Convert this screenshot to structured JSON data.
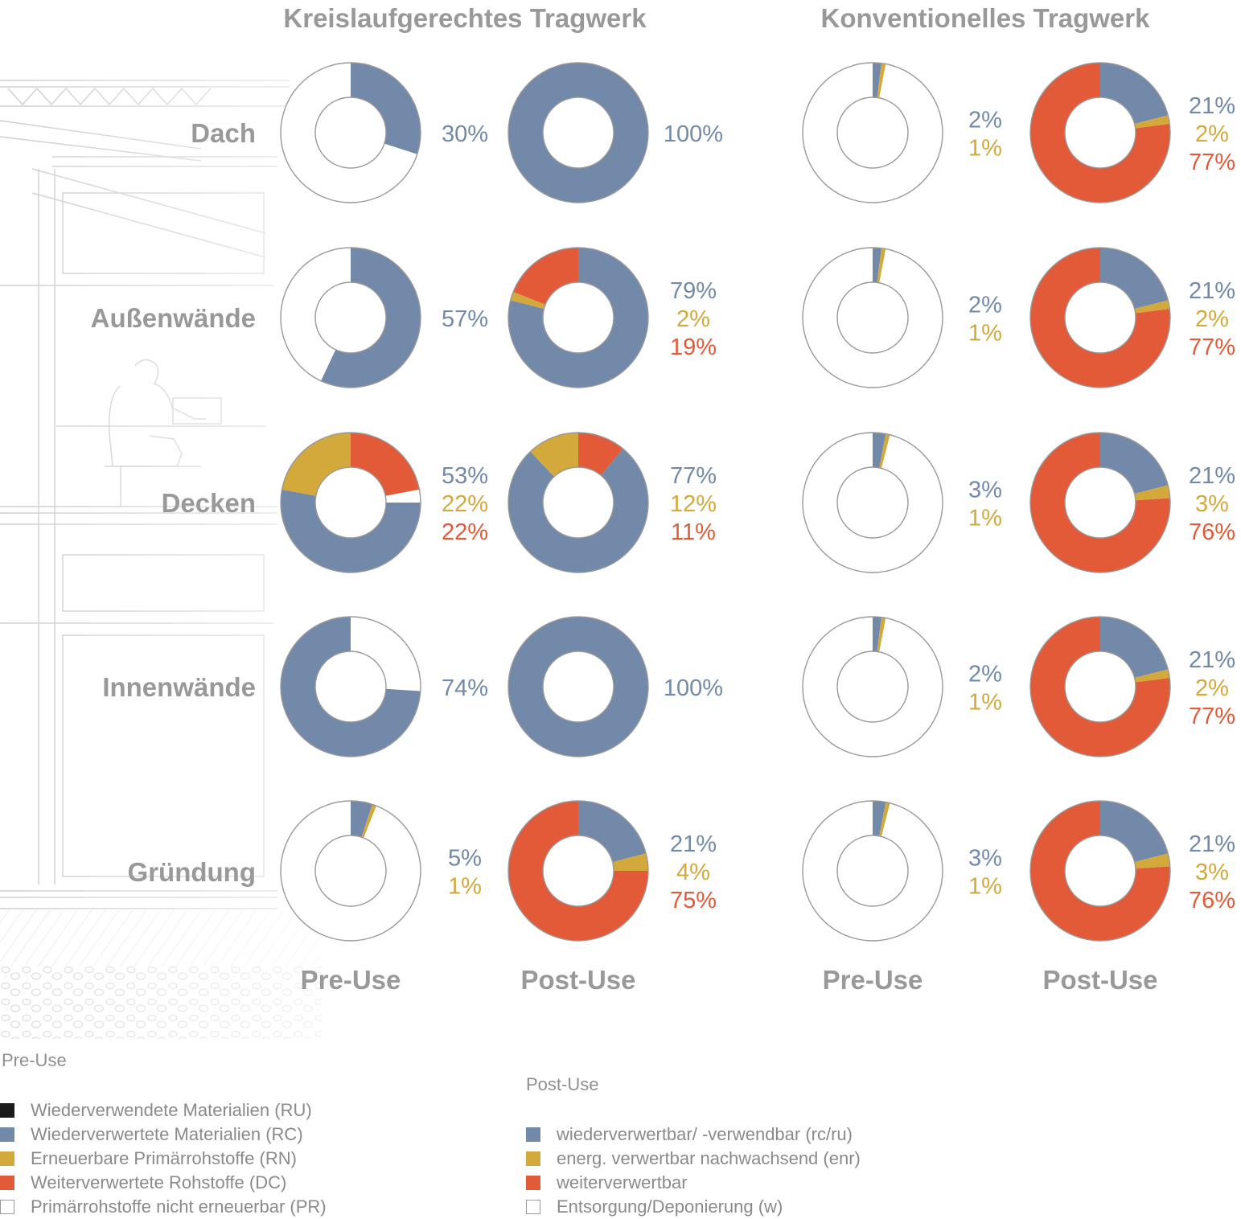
{
  "colors": {
    "rc": "#7289a9",
    "rn": "#d3a93b",
    "dc": "#e25a38",
    "ru": "#1a1a1a",
    "pr": "#ffffff",
    "text_grey": "#999999",
    "ring_stroke": "#999999"
  },
  "headers": {
    "left": "Kreislaufgerechtes Tragwerk",
    "right": "Konventionelles Tragwerk"
  },
  "row_labels": [
    "Dach",
    "Außenwände",
    "Decken",
    "Innenwände",
    "Gründung"
  ],
  "column_labels": [
    "Pre-Use",
    "Post-Use",
    "Pre-Use",
    "Post-Use"
  ],
  "chart_data": {
    "type": "pie",
    "variant": "donut-grid",
    "rows": [
      "Dach",
      "Außenwände",
      "Decken",
      "Innenwände",
      "Gründung"
    ],
    "columns": [
      {
        "group": "Kreislaufgerechtes Tragwerk",
        "phase": "Pre-Use"
      },
      {
        "group": "Kreislaufgerechtes Tragwerk",
        "phase": "Post-Use"
      },
      {
        "group": "Konventionelles Tragwerk",
        "phase": "Pre-Use"
      },
      {
        "group": "Konventionelles Tragwerk",
        "phase": "Post-Use"
      }
    ],
    "cells": [
      [
        {
          "slices": [
            {
              "key": "rc",
              "value": 30
            },
            {
              "key": "pr",
              "value": 70
            }
          ],
          "labels": [
            {
              "text": "30%",
              "key": "rc"
            }
          ]
        },
        {
          "slices": [
            {
              "key": "rc",
              "value": 100
            }
          ],
          "labels": [
            {
              "text": "100%",
              "key": "rc"
            }
          ]
        },
        {
          "slices": [
            {
              "key": "rc",
              "value": 2
            },
            {
              "key": "rn",
              "value": 1
            },
            {
              "key": "pr",
              "value": 97
            }
          ],
          "labels": [
            {
              "text": "2%",
              "key": "rc"
            },
            {
              "text": "1%",
              "key": "rn"
            }
          ]
        },
        {
          "slices": [
            {
              "key": "rc",
              "value": 21
            },
            {
              "key": "rn",
              "value": 2
            },
            {
              "key": "dc",
              "value": 77
            }
          ],
          "labels": [
            {
              "text": "21%",
              "key": "rc"
            },
            {
              "text": "2%",
              "key": "rn"
            },
            {
              "text": "77%",
              "key": "dc"
            }
          ]
        }
      ],
      [
        {
          "slices": [
            {
              "key": "rc",
              "value": 57
            },
            {
              "key": "pr",
              "value": 43
            }
          ],
          "labels": [
            {
              "text": "57%",
              "key": "rc"
            }
          ]
        },
        {
          "slices": [
            {
              "key": "rc",
              "value": 79
            },
            {
              "key": "rn",
              "value": 2
            },
            {
              "key": "dc",
              "value": 19
            }
          ],
          "labels": [
            {
              "text": "79%",
              "key": "rc"
            },
            {
              "text": "2%",
              "key": "rn"
            },
            {
              "text": "19%",
              "key": "dc"
            }
          ]
        },
        {
          "slices": [
            {
              "key": "rc",
              "value": 2
            },
            {
              "key": "rn",
              "value": 1
            },
            {
              "key": "pr",
              "value": 97
            }
          ],
          "labels": [
            {
              "text": "2%",
              "key": "rc"
            },
            {
              "text": "1%",
              "key": "rn"
            }
          ]
        },
        {
          "slices": [
            {
              "key": "rc",
              "value": 21
            },
            {
              "key": "rn",
              "value": 2
            },
            {
              "key": "dc",
              "value": 77
            }
          ],
          "labels": [
            {
              "text": "21%",
              "key": "rc"
            },
            {
              "text": "2%",
              "key": "rn"
            },
            {
              "text": "77%",
              "key": "dc"
            }
          ]
        }
      ],
      [
        {
          "slices": [
            {
              "key": "rc",
              "value": 53
            },
            {
              "key": "rn",
              "value": 22
            },
            {
              "key": "dc",
              "value": 22
            },
            {
              "key": "pr",
              "value": 3
            }
          ],
          "order": [
            "dc",
            "pr",
            "rc",
            "rn"
          ],
          "labels": [
            {
              "text": "53%",
              "key": "rc"
            },
            {
              "text": "22%",
              "key": "rn"
            },
            {
              "text": "22%",
              "key": "dc"
            }
          ]
        },
        {
          "slices": [
            {
              "key": "rc",
              "value": 77
            },
            {
              "key": "rn",
              "value": 12
            },
            {
              "key": "dc",
              "value": 11
            }
          ],
          "order": [
            "dc",
            "rc",
            "rn"
          ],
          "labels": [
            {
              "text": "77%",
              "key": "rc"
            },
            {
              "text": "12%",
              "key": "rn"
            },
            {
              "text": "11%",
              "key": "dc"
            }
          ]
        },
        {
          "slices": [
            {
              "key": "rc",
              "value": 3
            },
            {
              "key": "rn",
              "value": 1
            },
            {
              "key": "pr",
              "value": 96
            }
          ],
          "labels": [
            {
              "text": "3%",
              "key": "rc"
            },
            {
              "text": "1%",
              "key": "rn"
            }
          ]
        },
        {
          "slices": [
            {
              "key": "rc",
              "value": 21
            },
            {
              "key": "rn",
              "value": 3
            },
            {
              "key": "dc",
              "value": 76
            }
          ],
          "labels": [
            {
              "text": "21%",
              "key": "rc"
            },
            {
              "text": "3%",
              "key": "rn"
            },
            {
              "text": "76%",
              "key": "dc"
            }
          ]
        }
      ],
      [
        {
          "slices": [
            {
              "key": "rc",
              "value": 74
            },
            {
              "key": "pr",
              "value": 26
            }
          ],
          "order": [
            "pr",
            "rc"
          ],
          "labels": [
            {
              "text": "74%",
              "key": "rc"
            }
          ]
        },
        {
          "slices": [
            {
              "key": "rc",
              "value": 100
            }
          ],
          "labels": [
            {
              "text": "100%",
              "key": "rc"
            }
          ]
        },
        {
          "slices": [
            {
              "key": "rc",
              "value": 2
            },
            {
              "key": "rn",
              "value": 1
            },
            {
              "key": "pr",
              "value": 97
            }
          ],
          "labels": [
            {
              "text": "2%",
              "key": "rc"
            },
            {
              "text": "1%",
              "key": "rn"
            }
          ]
        },
        {
          "slices": [
            {
              "key": "rc",
              "value": 21
            },
            {
              "key": "rn",
              "value": 2
            },
            {
              "key": "dc",
              "value": 77
            }
          ],
          "labels": [
            {
              "text": "21%",
              "key": "rc"
            },
            {
              "text": "2%",
              "key": "rn"
            },
            {
              "text": "77%",
              "key": "dc"
            }
          ]
        }
      ],
      [
        {
          "slices": [
            {
              "key": "rc",
              "value": 5
            },
            {
              "key": "rn",
              "value": 1
            },
            {
              "key": "pr",
              "value": 94
            }
          ],
          "labels": [
            {
              "text": "5%",
              "key": "rc"
            },
            {
              "text": "1%",
              "key": "rn"
            }
          ]
        },
        {
          "slices": [
            {
              "key": "rc",
              "value": 21
            },
            {
              "key": "rn",
              "value": 4
            },
            {
              "key": "dc",
              "value": 75
            }
          ],
          "labels": [
            {
              "text": "21%",
              "key": "rc"
            },
            {
              "text": "4%",
              "key": "rn"
            },
            {
              "text": "75%",
              "key": "dc"
            }
          ]
        },
        {
          "slices": [
            {
              "key": "rc",
              "value": 3
            },
            {
              "key": "rn",
              "value": 1
            },
            {
              "key": "pr",
              "value": 96
            }
          ],
          "labels": [
            {
              "text": "3%",
              "key": "rc"
            },
            {
              "text": "1%",
              "key": "rn"
            }
          ]
        },
        {
          "slices": [
            {
              "key": "rc",
              "value": 21
            },
            {
              "key": "rn",
              "value": 3
            },
            {
              "key": "dc",
              "value": 76
            }
          ],
          "labels": [
            {
              "text": "21%",
              "key": "rc"
            },
            {
              "text": "3%",
              "key": "rn"
            },
            {
              "text": "76%",
              "key": "dc"
            }
          ]
        }
      ]
    ]
  },
  "legend": {
    "pre_use": {
      "title": "Pre-Use",
      "items": [
        {
          "label": "Wiederverwendete Materialien (RU)",
          "key": "ru"
        },
        {
          "label": "Wiederverwertete Materialien (RC)",
          "key": "rc"
        },
        {
          "label": "Erneuerbare Primärrohstoffe (RN)",
          "key": "rn"
        },
        {
          "label": "Weiterverwertete Rohstoffe (DC)",
          "key": "dc"
        },
        {
          "label": "Primärrohstoffe nicht erneuerbar (PR)",
          "key": "pr"
        }
      ]
    },
    "post_use": {
      "title": "Post-Use",
      "items": [
        {
          "label": "wiederverwertbar/ -verwendbar (rc/ru)",
          "key": "rc"
        },
        {
          "label": "energ. verwertbar nachwachsend (enr)",
          "key": "rn"
        },
        {
          "label": "weiterverwertbar",
          "key": "dc"
        },
        {
          "label": "Entsorgung/Deponierung (w)",
          "key": "pr"
        }
      ]
    }
  }
}
